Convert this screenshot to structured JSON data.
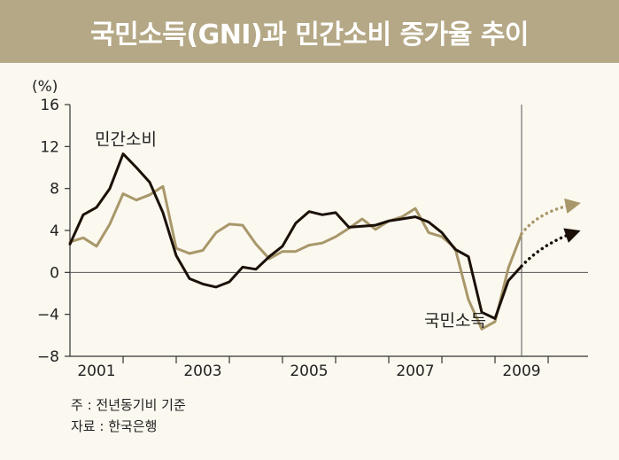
{
  "title": "국민소득(GNI)과 민간소비 증가율 추이",
  "notes": [
    "주 : 전년동기비 기준",
    "자료 : 한국은행"
  ],
  "colors": {
    "title_bg": "#b5a886",
    "gni": "#1a1008",
    "consumption": "#a8976a",
    "background": "#fbf8ef"
  },
  "chart_data": {
    "type": "line",
    "ylabel": "(%)",
    "ylim": [
      -8,
      16
    ],
    "yticks": [
      16,
      12,
      8,
      4,
      0,
      -4,
      -8
    ],
    "ytick_labels": [
      "16",
      "12",
      "8",
      "4",
      "0",
      "−4",
      "−8"
    ],
    "xlim": [
      2000.5,
      2010.25
    ],
    "xticks": [
      2001,
      2003,
      2005,
      2007,
      2009
    ],
    "xtick_labels": [
      "2001",
      "2003",
      "2005",
      "2007",
      "2009"
    ],
    "divider_x": 2009.0,
    "grid": false,
    "series": [
      {
        "name": "국민소득",
        "color": "#1a1008",
        "x": [
          2000.5,
          2000.75,
          2001.0,
          2001.25,
          2001.5,
          2001.75,
          2002.0,
          2002.25,
          2002.5,
          2002.75,
          2003.0,
          2003.25,
          2003.5,
          2003.75,
          2004.0,
          2004.25,
          2004.5,
          2004.75,
          2005.0,
          2005.25,
          2005.5,
          2005.75,
          2006.0,
          2006.25,
          2006.5,
          2006.75,
          2007.0,
          2007.25,
          2007.5,
          2007.75,
          2008.0,
          2008.25,
          2008.5,
          2008.75,
          2009.0
        ],
        "values": [
          2.7,
          5.5,
          6.2,
          8.0,
          11.3,
          10.0,
          8.6,
          5.7,
          1.6,
          -0.6,
          -1.1,
          -1.4,
          -0.9,
          0.5,
          0.3,
          1.5,
          2.5,
          4.7,
          5.8,
          5.5,
          5.7,
          4.3,
          4.4,
          4.5,
          4.9,
          5.1,
          5.3,
          4.8,
          3.8,
          2.2,
          1.5,
          -3.8,
          -4.4,
          -0.8,
          0.6
        ]
      },
      {
        "name": "민간소비",
        "color": "#a8976a",
        "x": [
          2000.5,
          2000.75,
          2001.0,
          2001.25,
          2001.5,
          2001.75,
          2002.0,
          2002.25,
          2002.5,
          2002.75,
          2003.0,
          2003.25,
          2003.5,
          2003.75,
          2004.0,
          2004.25,
          2004.5,
          2004.75,
          2005.0,
          2005.25,
          2005.5,
          2005.75,
          2006.0,
          2006.25,
          2006.5,
          2006.75,
          2007.0,
          2007.25,
          2007.5,
          2007.75,
          2008.0,
          2008.25,
          2008.5,
          2008.75,
          2009.0
        ],
        "values": [
          2.9,
          3.3,
          2.5,
          4.6,
          7.5,
          6.9,
          7.4,
          8.2,
          2.3,
          1.8,
          2.1,
          3.8,
          4.6,
          4.5,
          2.7,
          1.3,
          2.0,
          2.0,
          2.6,
          2.8,
          3.4,
          4.2,
          5.1,
          4.1,
          4.9,
          5.3,
          6.1,
          3.8,
          3.4,
          2.3,
          -2.6,
          -5.4,
          -4.7,
          0.4,
          3.7
        ]
      }
    ],
    "projections": [
      {
        "series": "민간소비",
        "color": "#a8976a",
        "x": [
          2009.0,
          2009.25,
          2009.6,
          2010.0
        ],
        "values": [
          3.7,
          5.3,
          6.1,
          6.5
        ]
      },
      {
        "series": "국민소득",
        "color": "#1a1008",
        "x": [
          2009.0,
          2009.3,
          2009.65,
          2010.0
        ],
        "values": [
          0.6,
          2.2,
          3.2,
          3.8
        ]
      }
    ],
    "annotations": [
      {
        "text": "민간소비",
        "series": "민간소비"
      },
      {
        "text": "국민소득",
        "series": "국민소득"
      }
    ]
  }
}
